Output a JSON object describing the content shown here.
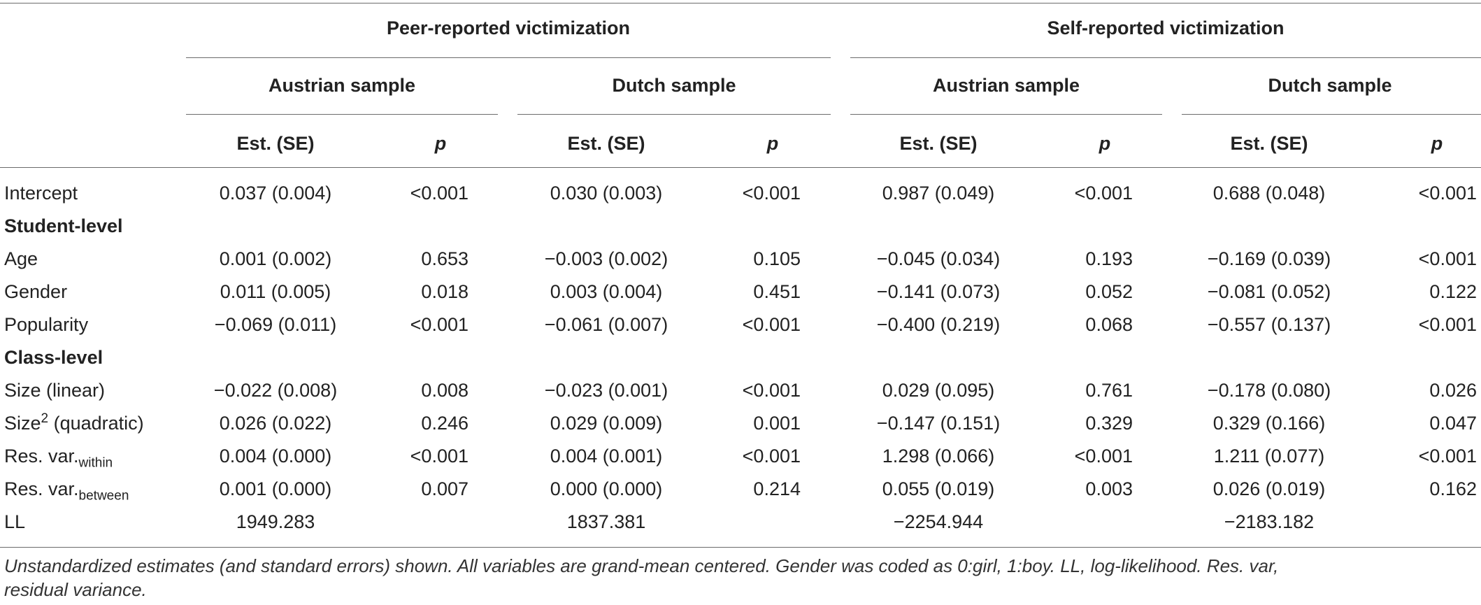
{
  "headers": {
    "group_peer": "Peer-reported victimization",
    "group_self": "Self-reported victimization",
    "samples": [
      "Austrian sample",
      "Dutch sample",
      "Austrian sample",
      "Dutch sample"
    ],
    "est_label": "Est. (SE)",
    "p_label": "p"
  },
  "rows": {
    "intercept": {
      "label": "Intercept",
      "cells": [
        "0.037 (0.004)",
        "<0.001",
        "0.030 (0.003)",
        "<0.001",
        "0.987 (0.049)",
        "<0.001",
        "0.688 (0.048)",
        "<0.001"
      ]
    },
    "student_level": "Student-level",
    "age": {
      "label": "Age",
      "cells": [
        "0.001 (0.002)",
        "0.653",
        "−0.003 (0.002)",
        "0.105",
        "−0.045 (0.034)",
        "0.193",
        "−0.169 (0.039)",
        "<0.001"
      ]
    },
    "gender": {
      "label": "Gender",
      "cells": [
        "0.011 (0.005)",
        "0.018",
        "0.003 (0.004)",
        "0.451",
        "−0.141 (0.073)",
        "0.052",
        "−0.081 (0.052)",
        "0.122"
      ]
    },
    "popularity": {
      "label": "Popularity",
      "cells": [
        "−0.069 (0.011)",
        "<0.001",
        "−0.061 (0.007)",
        "<0.001",
        "−0.400 (0.219)",
        "0.068",
        "−0.557 (0.137)",
        "<0.001"
      ]
    },
    "class_level": "Class-level",
    "size_linear": {
      "label": "Size (linear)",
      "cells": [
        "−0.022 (0.008)",
        "0.008",
        "−0.023 (0.001)",
        "<0.001",
        "0.029 (0.095)",
        "0.761",
        "−0.178 (0.080)",
        "0.026"
      ]
    },
    "size_quad": {
      "label_pre": "Size",
      "label_sup": "2",
      "label_post": " (quadratic)",
      "cells": [
        "0.026 (0.022)",
        "0.246",
        "0.029 (0.009)",
        "0.001",
        "−0.147 (0.151)",
        "0.329",
        "0.329 (0.166)",
        "0.047"
      ]
    },
    "resvar_within": {
      "label_pre": "Res. var.",
      "label_sub": "within",
      "cells": [
        "0.004 (0.000)",
        "<0.001",
        "0.004 (0.001)",
        "<0.001",
        "1.298 (0.066)",
        "<0.001",
        "1.211 (0.077)",
        "<0.001"
      ]
    },
    "resvar_between": {
      "label_pre": "Res. var.",
      "label_sub": "between",
      "cells": [
        "0.001 (0.000)",
        "0.007",
        "0.000 (0.000)",
        "0.214",
        "0.055 (0.019)",
        "0.003",
        "0.026 (0.019)",
        "0.162"
      ]
    },
    "ll": {
      "label": "LL",
      "cells": [
        "1949.283",
        "1837.381",
        "−2254.944",
        "−2183.182"
      ]
    }
  },
  "footnote": {
    "line1": "Unstandardized estimates (and standard errors) shown. All variables are grand-mean centered. Gender was coded as 0:girl, 1:boy. LL, log-likelihood. Res. var,",
    "line2": "residual variance."
  }
}
